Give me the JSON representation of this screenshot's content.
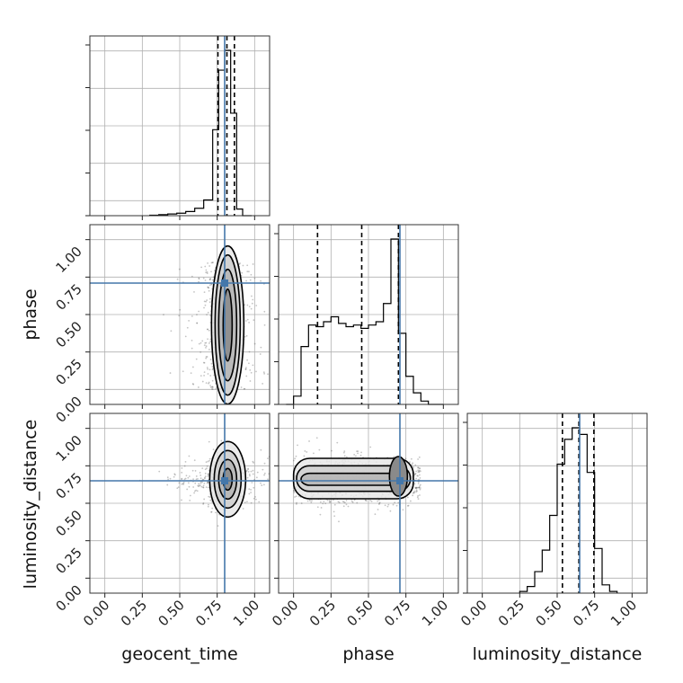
{
  "chart_data": {
    "type": "corner",
    "parameters": [
      "geocent_time",
      "phase",
      "luminosity_distance"
    ],
    "truths": {
      "geocent_time": 0.8,
      "phase": 0.71,
      "luminosity_distance": 0.65
    },
    "axis_range": [
      -0.1,
      1.1
    ],
    "ticks": [
      0.0,
      0.25,
      0.5,
      0.75,
      1.0
    ],
    "tick_labels": [
      "0.00",
      "0.25",
      "0.50",
      "0.75",
      "1.00"
    ],
    "quantiles": {
      "geocent_time": [
        0.755,
        0.815,
        0.865
      ],
      "phase": [
        0.16,
        0.455,
        0.7
      ],
      "luminosity_distance": [
        0.535,
        0.645,
        0.745
      ]
    },
    "histograms": {
      "geocent_time": {
        "bins": [
          0.3,
          0.36,
          0.42,
          0.48,
          0.54,
          0.6,
          0.66,
          0.72,
          0.76,
          0.8,
          0.84,
          0.88,
          0.92,
          0.98
        ],
        "counts": [
          0.003,
          0.006,
          0.01,
          0.015,
          0.025,
          0.045,
          0.095,
          0.52,
          0.88,
          1.0,
          0.62,
          0.04,
          0.0
        ]
      },
      "phase": {
        "bins": [
          -0.05,
          0.0,
          0.05,
          0.1,
          0.15,
          0.2,
          0.25,
          0.3,
          0.35,
          0.4,
          0.45,
          0.5,
          0.55,
          0.6,
          0.65,
          0.7,
          0.75,
          0.8,
          0.85,
          0.9,
          0.95,
          1.0
        ],
        "counts": [
          0.0,
          0.05,
          0.35,
          0.48,
          0.47,
          0.5,
          0.53,
          0.49,
          0.47,
          0.48,
          0.46,
          0.48,
          0.5,
          0.61,
          1.0,
          0.43,
          0.17,
          0.07,
          0.02,
          0.0,
          0.0
        ]
      },
      "luminosity_distance": {
        "bins": [
          0.25,
          0.3,
          0.35,
          0.4,
          0.45,
          0.5,
          0.55,
          0.6,
          0.65,
          0.7,
          0.75,
          0.8,
          0.85,
          0.9
        ],
        "counts": [
          0.01,
          0.04,
          0.13,
          0.26,
          0.47,
          0.78,
          0.93,
          1.0,
          0.96,
          0.73,
          0.27,
          0.05,
          0.01
        ]
      }
    },
    "scatter": {
      "phase_vs_geocent_time": {
        "x_center": 0.8,
        "x_spread": 0.06,
        "y_range": [
          0.0,
          0.85
        ]
      },
      "luminosity_distance_vs_geocent_time": {
        "x_center": 0.8,
        "x_spread": 0.06,
        "y_center": 0.65,
        "y_spread": 0.08
      },
      "luminosity_distance_vs_phase": {
        "x_range": [
          0.0,
          0.85
        ],
        "y_center": 0.65,
        "y_spread": 0.08
      }
    },
    "colors": {
      "truth": "#4477aa",
      "line": "#000000",
      "grid": "#b0b0b0",
      "points": "#555555"
    },
    "grid": true
  }
}
